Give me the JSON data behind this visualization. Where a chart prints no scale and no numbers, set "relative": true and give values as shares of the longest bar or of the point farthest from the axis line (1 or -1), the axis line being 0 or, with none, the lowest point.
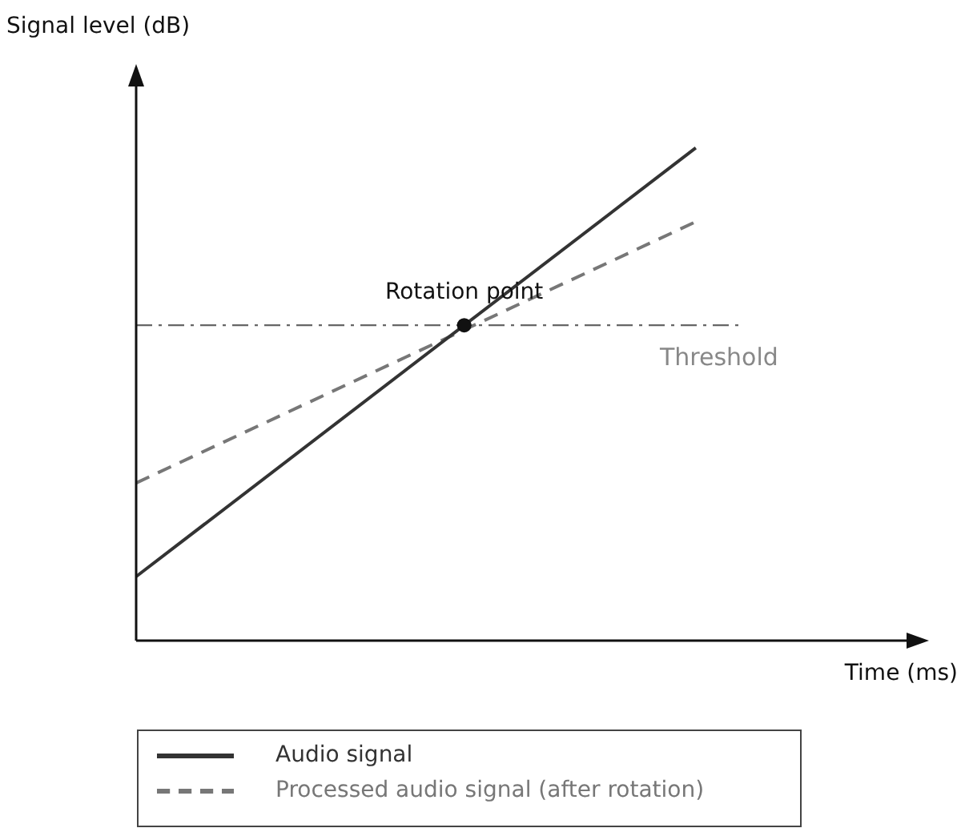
{
  "chart_data": {
    "type": "line",
    "relative": true,
    "xlabel": "Time (ms)",
    "ylabel": "Signal level (dB)",
    "categories": [
      null,
      null,
      null,
      null,
      null,
      null,
      null,
      null,
      null,
      null,
      null,
      null,
      null,
      null,
      null,
      null,
      null,
      null
    ],
    "series": [
      {
        "name": "Audio signal",
        "color": "#333333",
        "line_style": "solid",
        "values": [
          0.13,
          null,
          null,
          null,
          null,
          null,
          null,
          null,
          null,
          null,
          null,
          null,
          1,
          null,
          null,
          null,
          null,
          null
        ]
      },
      {
        "name": "Processed audio signal (after rotation)",
        "color": "#777777",
        "line_style": "dashed",
        "values": [
          0.32,
          null,
          null,
          null,
          null,
          null,
          null,
          null,
          null,
          null,
          null,
          null,
          0.85,
          null,
          null,
          null,
          null,
          null
        ]
      }
    ],
    "ref_lines": [
      {
        "axis": "y",
        "value": 0.64,
        "label": "Threshold",
        "color": "#666666",
        "line_style": "dashed"
      }
    ],
    "annotations": [
      {
        "text": "Rotation point",
        "y": 0.64
      }
    ],
    "legend": "bottom"
  }
}
